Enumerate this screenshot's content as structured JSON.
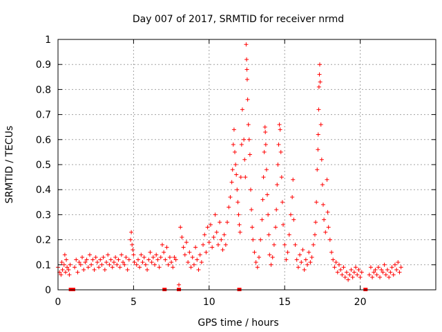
{
  "chart_data": {
    "type": "scatter",
    "title": "Day 007 of 2017, SRMTID for receiver nrmd",
    "xlabel": "GPS time / hours",
    "ylabel": "SRMTID / TECUs",
    "xlim": [
      0,
      25
    ],
    "ylim": [
      0,
      1
    ],
    "xticks": [
      "0",
      "5",
      "10",
      "15",
      "20"
    ],
    "yticks": [
      "0",
      "0.1",
      "0.2",
      "0.3",
      "0.4",
      "0.5",
      "0.6",
      "0.7",
      "0.8",
      "0.9",
      "1"
    ],
    "grid": true,
    "marker": "+",
    "color": "#ff0000",
    "series": [
      {
        "points": [
          [
            0.0,
            0.09
          ],
          [
            0.1,
            0.07
          ],
          [
            0.2,
            0.06
          ],
          [
            0.25,
            0.11
          ],
          [
            0.3,
            0.08
          ],
          [
            0.4,
            0.1
          ],
          [
            0.45,
            0.14
          ],
          [
            0.5,
            0.07
          ],
          [
            0.55,
            0.12
          ],
          [
            0.6,
            0.09
          ],
          [
            0.7,
            0.08
          ],
          [
            0.75,
            0.06
          ],
          [
            0.8,
            0.1
          ],
          [
            1.1,
            0.09
          ],
          [
            1.2,
            0.12
          ],
          [
            1.3,
            0.07
          ],
          [
            1.4,
            0.11
          ],
          [
            1.5,
            0.1
          ],
          [
            1.6,
            0.13
          ],
          [
            1.7,
            0.08
          ],
          [
            1.8,
            0.11
          ],
          [
            1.9,
            0.12
          ],
          [
            2.0,
            0.09
          ],
          [
            2.1,
            0.14
          ],
          [
            2.2,
            0.1
          ],
          [
            2.3,
            0.12
          ],
          [
            2.4,
            0.08
          ],
          [
            2.5,
            0.13
          ],
          [
            2.6,
            0.11
          ],
          [
            2.7,
            0.09
          ],
          [
            2.8,
            0.12
          ],
          [
            2.9,
            0.1
          ],
          [
            3.0,
            0.13
          ],
          [
            3.1,
            0.08
          ],
          [
            3.2,
            0.11
          ],
          [
            3.3,
            0.14
          ],
          [
            3.4,
            0.1
          ],
          [
            3.5,
            0.12
          ],
          [
            3.6,
            0.09
          ],
          [
            3.7,
            0.11
          ],
          [
            3.8,
            0.13
          ],
          [
            3.9,
            0.1
          ],
          [
            4.0,
            0.12
          ],
          [
            4.1,
            0.09
          ],
          [
            4.2,
            0.14
          ],
          [
            4.3,
            0.11
          ],
          [
            4.4,
            0.1
          ],
          [
            4.5,
            0.13
          ],
          [
            4.6,
            0.08
          ],
          [
            4.7,
            0.12
          ],
          [
            4.8,
            0.2
          ],
          [
            4.85,
            0.23
          ],
          [
            4.9,
            0.18
          ],
          [
            4.95,
            0.16
          ],
          [
            5.0,
            0.14
          ],
          [
            5.05,
            0.11
          ],
          [
            5.2,
            0.1
          ],
          [
            5.3,
            0.12
          ],
          [
            5.4,
            0.09
          ],
          [
            5.5,
            0.14
          ],
          [
            5.6,
            0.11
          ],
          [
            5.7,
            0.13
          ],
          [
            5.8,
            0.1
          ],
          [
            5.9,
            0.08
          ],
          [
            6.0,
            0.12
          ],
          [
            6.1,
            0.15
          ],
          [
            6.2,
            0.11
          ],
          [
            6.3,
            0.13
          ],
          [
            6.4,
            0.1
          ],
          [
            6.5,
            0.14
          ],
          [
            6.6,
            0.12
          ],
          [
            6.7,
            0.09
          ],
          [
            6.8,
            0.13
          ],
          [
            6.9,
            0.18
          ],
          [
            7.0,
            0.15
          ],
          [
            7.1,
            0.12
          ],
          [
            7.2,
            0.17
          ],
          [
            7.3,
            0.1
          ],
          [
            7.4,
            0.13
          ],
          [
            7.5,
            0.11
          ],
          [
            7.6,
            0.09
          ],
          [
            7.7,
            0.13
          ],
          [
            7.8,
            0.12
          ],
          [
            8.0,
            0.02
          ],
          [
            8.1,
            0.25
          ],
          [
            8.2,
            0.21
          ],
          [
            8.3,
            0.17
          ],
          [
            8.4,
            0.14
          ],
          [
            8.5,
            0.19
          ],
          [
            8.6,
            0.11
          ],
          [
            8.7,
            0.15
          ],
          [
            8.8,
            0.09
          ],
          [
            8.9,
            0.13
          ],
          [
            9.0,
            0.1
          ],
          [
            9.1,
            0.17
          ],
          [
            9.2,
            0.12
          ],
          [
            9.3,
            0.08
          ],
          [
            9.4,
            0.14
          ],
          [
            9.5,
            0.11
          ],
          [
            9.6,
            0.18
          ],
          [
            9.7,
            0.22
          ],
          [
            9.8,
            0.15
          ],
          [
            9.9,
            0.25
          ],
          [
            10.0,
            0.19
          ],
          [
            10.1,
            0.26
          ],
          [
            10.2,
            0.17
          ],
          [
            10.3,
            0.21
          ],
          [
            10.4,
            0.3
          ],
          [
            10.5,
            0.23
          ],
          [
            10.6,
            0.18
          ],
          [
            10.7,
            0.27
          ],
          [
            10.8,
            0.2
          ],
          [
            10.9,
            0.16
          ],
          [
            11.0,
            0.22
          ],
          [
            11.1,
            0.18
          ],
          [
            11.2,
            0.27
          ],
          [
            11.3,
            0.33
          ],
          [
            11.4,
            0.37
          ],
          [
            11.5,
            0.43
          ],
          [
            11.55,
            0.48
          ],
          [
            11.6,
            0.58
          ],
          [
            11.65,
            0.64
          ],
          [
            11.7,
            0.55
          ],
          [
            11.75,
            0.5
          ],
          [
            11.8,
            0.46
          ],
          [
            11.85,
            0.4
          ],
          [
            11.9,
            0.35
          ],
          [
            11.95,
            0.3
          ],
          [
            12.0,
            0.26
          ],
          [
            12.05,
            0.23
          ],
          [
            12.1,
            0.45
          ],
          [
            12.15,
            0.58
          ],
          [
            12.2,
            0.72
          ],
          [
            12.3,
            0.6
          ],
          [
            12.35,
            0.52
          ],
          [
            12.4,
            0.45
          ],
          [
            12.45,
            0.98
          ],
          [
            12.48,
            0.92
          ],
          [
            12.5,
            0.88
          ],
          [
            12.52,
            0.84
          ],
          [
            12.55,
            0.76
          ],
          [
            12.6,
            0.66
          ],
          [
            12.65,
            0.6
          ],
          [
            12.7,
            0.54
          ],
          [
            12.75,
            0.4
          ],
          [
            12.8,
            0.32
          ],
          [
            12.85,
            0.25
          ],
          [
            12.9,
            0.2
          ],
          [
            13.0,
            0.15
          ],
          [
            13.1,
            0.11
          ],
          [
            13.2,
            0.09
          ],
          [
            13.3,
            0.13
          ],
          [
            13.4,
            0.2
          ],
          [
            13.5,
            0.28
          ],
          [
            13.55,
            0.36
          ],
          [
            13.6,
            0.45
          ],
          [
            13.65,
            0.55
          ],
          [
            13.7,
            0.65
          ],
          [
            13.72,
            0.63
          ],
          [
            13.75,
            0.58
          ],
          [
            13.8,
            0.48
          ],
          [
            13.85,
            0.38
          ],
          [
            13.9,
            0.3
          ],
          [
            13.95,
            0.22
          ],
          [
            14.0,
            0.14
          ],
          [
            14.1,
            0.1
          ],
          [
            14.2,
            0.13
          ],
          [
            14.3,
            0.18
          ],
          [
            14.4,
            0.25
          ],
          [
            14.45,
            0.32
          ],
          [
            14.5,
            0.42
          ],
          [
            14.55,
            0.5
          ],
          [
            14.6,
            0.58
          ],
          [
            14.65,
            0.66
          ],
          [
            14.7,
            0.64
          ],
          [
            14.75,
            0.55
          ],
          [
            14.8,
            0.45
          ],
          [
            14.85,
            0.35
          ],
          [
            14.9,
            0.26
          ],
          [
            15.0,
            0.18
          ],
          [
            15.1,
            0.12
          ],
          [
            15.2,
            0.15
          ],
          [
            15.3,
            0.22
          ],
          [
            15.4,
            0.3
          ],
          [
            15.5,
            0.37
          ],
          [
            15.55,
            0.44
          ],
          [
            15.6,
            0.28
          ],
          [
            15.7,
            0.18
          ],
          [
            15.8,
            0.12
          ],
          [
            15.9,
            0.09
          ],
          [
            16.0,
            0.14
          ],
          [
            16.1,
            0.11
          ],
          [
            16.2,
            0.16
          ],
          [
            16.3,
            0.08
          ],
          [
            16.4,
            0.12
          ],
          [
            16.5,
            0.1
          ],
          [
            16.6,
            0.15
          ],
          [
            16.7,
            0.11
          ],
          [
            16.8,
            0.13
          ],
          [
            16.9,
            0.18
          ],
          [
            17.0,
            0.22
          ],
          [
            17.05,
            0.27
          ],
          [
            17.1,
            0.35
          ],
          [
            17.15,
            0.48
          ],
          [
            17.2,
            0.56
          ],
          [
            17.22,
            0.62
          ],
          [
            17.25,
            0.72
          ],
          [
            17.27,
            0.81
          ],
          [
            17.3,
            0.86
          ],
          [
            17.32,
            0.9
          ],
          [
            17.35,
            0.83
          ],
          [
            17.4,
            0.66
          ],
          [
            17.45,
            0.52
          ],
          [
            17.5,
            0.42
          ],
          [
            17.55,
            0.34
          ],
          [
            17.6,
            0.28
          ],
          [
            17.7,
            0.23
          ],
          [
            17.8,
            0.44
          ],
          [
            17.85,
            0.31
          ],
          [
            17.9,
            0.25
          ],
          [
            18.0,
            0.2
          ],
          [
            18.1,
            0.15
          ],
          [
            18.2,
            0.12
          ],
          [
            18.3,
            0.09
          ],
          [
            18.4,
            0.11
          ],
          [
            18.5,
            0.07
          ],
          [
            18.6,
            0.1
          ],
          [
            18.7,
            0.08
          ],
          [
            18.8,
            0.06
          ],
          [
            18.9,
            0.09
          ],
          [
            19.0,
            0.05
          ],
          [
            19.1,
            0.07
          ],
          [
            19.2,
            0.04
          ],
          [
            19.3,
            0.06
          ],
          [
            19.4,
            0.08
          ],
          [
            19.5,
            0.05
          ],
          [
            19.6,
            0.07
          ],
          [
            19.7,
            0.09
          ],
          [
            19.8,
            0.06
          ],
          [
            19.9,
            0.08
          ],
          [
            20.0,
            0.05
          ],
          [
            20.1,
            0.07
          ],
          [
            20.6,
            0.06
          ],
          [
            20.7,
            0.09
          ],
          [
            20.8,
            0.05
          ],
          [
            20.9,
            0.07
          ],
          [
            21.0,
            0.08
          ],
          [
            21.1,
            0.06
          ],
          [
            21.2,
            0.09
          ],
          [
            21.3,
            0.05
          ],
          [
            21.4,
            0.08
          ],
          [
            21.5,
            0.07
          ],
          [
            21.6,
            0.1
          ],
          [
            21.7,
            0.06
          ],
          [
            21.8,
            0.08
          ],
          [
            21.9,
            0.05
          ],
          [
            22.0,
            0.07
          ],
          [
            22.1,
            0.09
          ],
          [
            22.2,
            0.06
          ],
          [
            22.3,
            0.1
          ],
          [
            22.4,
            0.08
          ],
          [
            22.5,
            0.11
          ],
          [
            22.6,
            0.07
          ],
          [
            22.7,
            0.09
          ]
        ]
      }
    ],
    "zero_markers_x": [
      0.85,
      1.0,
      7.05,
      8.0,
      12.0,
      20.35
    ]
  }
}
